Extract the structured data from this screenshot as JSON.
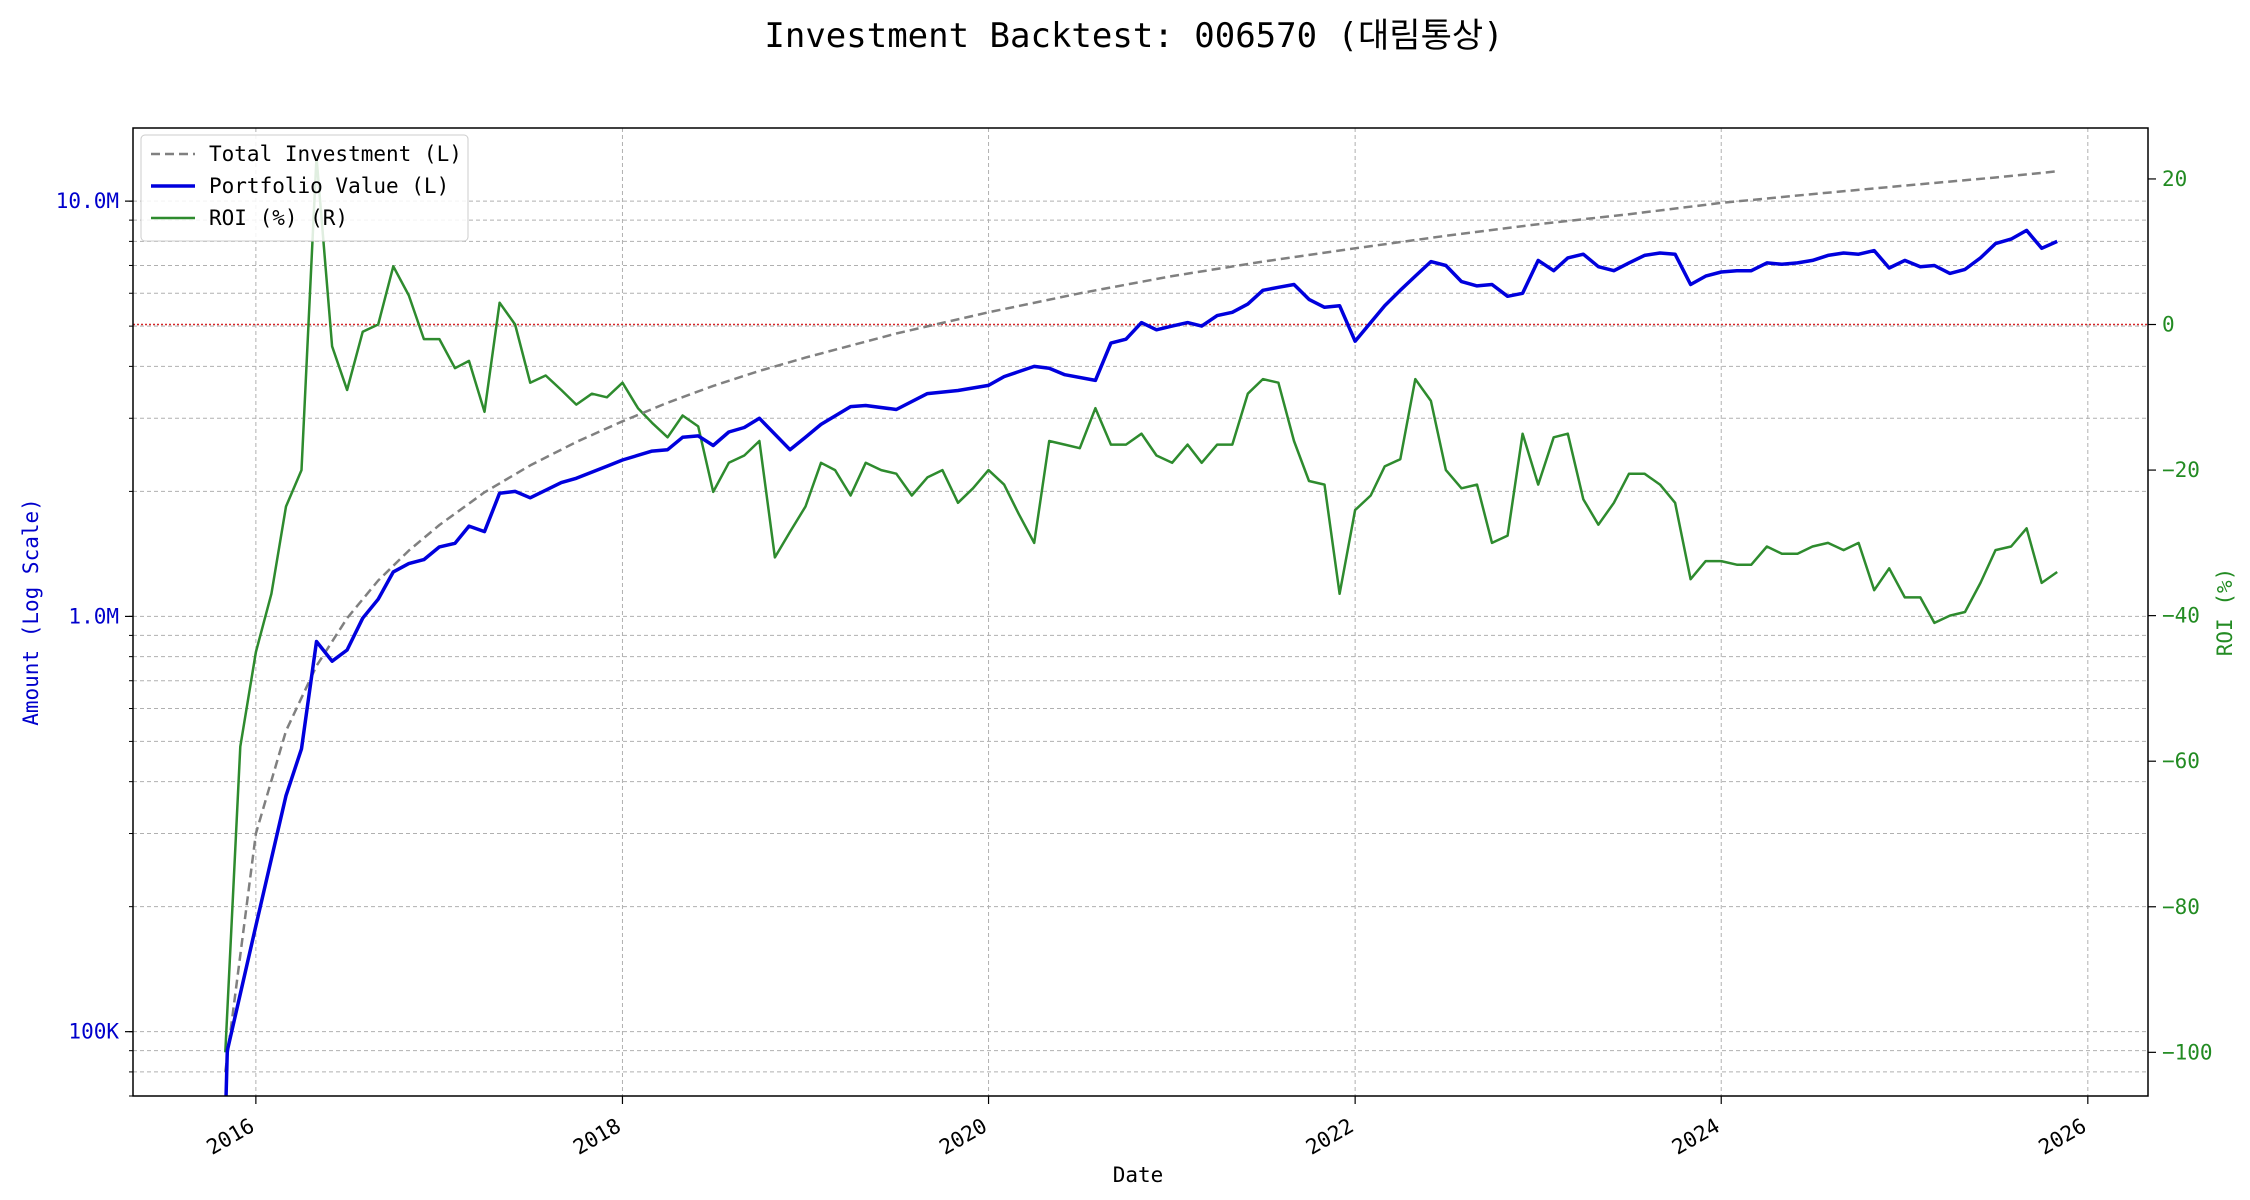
{
  "chart_data": {
    "type": "line",
    "title": "Investment Backtest: 006570 (대림통상)",
    "xlabel": "Date",
    "ylabel_left": "Amount (Log Scale)",
    "ylabel_right": "ROI (%)",
    "left_axis_scale": "log",
    "left_ylim": [
      70000,
      15000000
    ],
    "right_ylim": [
      -106,
      27
    ],
    "xlim": [
      "2015-05-01",
      "2026-05-01"
    ],
    "grid": true,
    "legend_position": "top-left",
    "zero_line": {
      "axis": "right",
      "value": 0,
      "color": "#d62728",
      "style": "dotted"
    },
    "x_ticks": [
      "2016",
      "2018",
      "2020",
      "2022",
      "2024",
      "2026"
    ],
    "left_ticks": [
      {
        "value": 100000,
        "label": "100K"
      },
      {
        "value": 1000000,
        "label": "1.0M"
      },
      {
        "value": 10000000,
        "label": "10.0M"
      }
    ],
    "right_ticks": [
      {
        "value": 20,
        "label": "20"
      },
      {
        "value": 0,
        "label": "0"
      },
      {
        "value": -20,
        "label": "−20"
      },
      {
        "value": -40,
        "label": "−40"
      },
      {
        "value": -60,
        "label": "−60"
      },
      {
        "value": -80,
        "label": "−80"
      },
      {
        "value": -100,
        "label": "−100"
      }
    ],
    "colors": {
      "total_investment": "#808080",
      "portfolio_value": "#0000dd",
      "roi": "#2e8b2e",
      "left_axis": "#0000cc",
      "right_axis": "#228b22",
      "grid": "#b0b0b0"
    },
    "series": [
      {
        "name": "Total Investment (L)",
        "axis": "left",
        "style": "dashed",
        "x": [
          "2015-11-01",
          "2016-01-01",
          "2016-03-01",
          "2016-05-01",
          "2016-07-01",
          "2016-09-01",
          "2016-11-01",
          "2017-01-01",
          "2017-04-01",
          "2017-07-01",
          "2017-10-01",
          "2018-01-01",
          "2018-04-01",
          "2018-07-01",
          "2018-10-01",
          "2019-01-01",
          "2019-07-01",
          "2020-01-01",
          "2020-07-01",
          "2021-01-01",
          "2021-07-01",
          "2022-01-01",
          "2022-07-01",
          "2023-01-01",
          "2023-07-01",
          "2024-01-01",
          "2024-07-01",
          "2025-01-01",
          "2025-07-01",
          "2025-11-01"
        ],
        "values": [
          80000,
          300000,
          530000,
          760000,
          990000,
          1220000,
          1440000,
          1660000,
          1990000,
          2310000,
          2630000,
          2950000,
          3270000,
          3590000,
          3900000,
          4200000,
          4800000,
          5400000,
          6000000,
          6600000,
          7150000,
          7700000,
          8250000,
          8800000,
          9300000,
          9900000,
          10400000,
          10900000,
          11400000,
          11800000
        ]
      },
      {
        "name": "Portfolio Value (L)",
        "axis": "left",
        "style": "solid",
        "x": [
          "2015-11-01",
          "2015-11-05",
          "2016-01-01",
          "2016-03-01",
          "2016-04-01",
          "2016-05-01",
          "2016-06-01",
          "2016-07-01",
          "2016-08-01",
          "2016-09-01",
          "2016-10-01",
          "2016-11-01",
          "2016-12-01",
          "2017-01-01",
          "2017-02-01",
          "2017-03-01",
          "2017-04-01",
          "2017-05-01",
          "2017-06-01",
          "2017-07-01",
          "2017-09-01",
          "2017-10-01",
          "2017-12-01",
          "2018-01-01",
          "2018-03-01",
          "2018-04-01",
          "2018-05-01",
          "2018-06-01",
          "2018-07-01",
          "2018-08-01",
          "2018-09-01",
          "2018-10-01",
          "2018-12-01",
          "2019-01-01",
          "2019-02-01",
          "2019-04-01",
          "2019-05-01",
          "2019-07-01",
          "2019-09-01",
          "2019-11-01",
          "2020-01-01",
          "2020-02-01",
          "2020-04-01",
          "2020-05-01",
          "2020-06-01",
          "2020-08-01",
          "2020-09-01",
          "2020-10-01",
          "2020-11-01",
          "2020-12-01",
          "2021-01-01",
          "2021-02-01",
          "2021-03-01",
          "2021-04-01",
          "2021-05-01",
          "2021-06-01",
          "2021-07-01",
          "2021-08-01",
          "2021-09-01",
          "2021-10-01",
          "2021-11-01",
          "2021-12-01",
          "2022-01-01",
          "2022-03-01",
          "2022-04-01",
          "2022-05-01",
          "2022-06-01",
          "2022-07-01",
          "2022-08-01",
          "2022-09-01",
          "2022-10-01",
          "2022-11-01",
          "2022-12-01",
          "2023-01-01",
          "2023-02-01",
          "2023-03-01",
          "2023-04-01",
          "2023-05-01",
          "2023-06-01",
          "2023-07-01",
          "2023-08-01",
          "2023-09-01",
          "2023-10-01",
          "2023-11-01",
          "2023-12-01",
          "2024-01-01",
          "2024-02-01",
          "2024-03-01",
          "2024-04-01",
          "2024-05-01",
          "2024-06-01",
          "2024-07-01",
          "2024-08-01",
          "2024-09-01",
          "2024-10-01",
          "2024-11-01",
          "2024-12-01",
          "2025-01-01",
          "2025-02-01",
          "2025-03-01",
          "2025-04-01",
          "2025-05-01",
          "2025-06-01",
          "2025-07-01",
          "2025-08-01",
          "2025-09-01",
          "2025-10-01",
          "2025-11-01"
        ],
        "values": [
          60000,
          90000,
          180000,
          370000,
          480000,
          870000,
          780000,
          830000,
          990000,
          1100000,
          1280000,
          1340000,
          1370000,
          1470000,
          1500000,
          1650000,
          1600000,
          1980000,
          2000000,
          1930000,
          2100000,
          2150000,
          2300000,
          2380000,
          2500000,
          2520000,
          2700000,
          2720000,
          2580000,
          2780000,
          2850000,
          3000000,
          2520000,
          2700000,
          2900000,
          3200000,
          3220000,
          3150000,
          3440000,
          3500000,
          3600000,
          3780000,
          4000000,
          3960000,
          3820000,
          3700000,
          4550000,
          4650000,
          5100000,
          4900000,
          5000000,
          5100000,
          5000000,
          5300000,
          5400000,
          5650000,
          6100000,
          6200000,
          6300000,
          5800000,
          5550000,
          5600000,
          4600000,
          5600000,
          6100000,
          6600000,
          7150000,
          7000000,
          6400000,
          6250000,
          6300000,
          5900000,
          6000000,
          7200000,
          6800000,
          7300000,
          7450000,
          6950000,
          6800000,
          7100000,
          7400000,
          7500000,
          7450000,
          6300000,
          6600000,
          6750000,
          6800000,
          6800000,
          7100000,
          7050000,
          7100000,
          7200000,
          7400000,
          7500000,
          7450000,
          7600000,
          6900000,
          7200000,
          6950000,
          7000000,
          6700000,
          6850000,
          7300000,
          7900000,
          8100000,
          8500000,
          7700000,
          8000000
        ]
      },
      {
        "name": "ROI (%) (R)",
        "axis": "right",
        "style": "solid",
        "x": [
          "2015-11-01",
          "2015-12-01",
          "2016-01-01",
          "2016-02-01",
          "2016-03-01",
          "2016-04-01",
          "2016-05-01",
          "2016-06-01",
          "2016-07-01",
          "2016-08-01",
          "2016-09-01",
          "2016-10-01",
          "2016-11-01",
          "2016-12-01",
          "2017-01-01",
          "2017-02-01",
          "2017-03-01",
          "2017-04-01",
          "2017-05-01",
          "2017-06-01",
          "2017-07-01",
          "2017-08-01",
          "2017-09-01",
          "2017-10-01",
          "2017-11-01",
          "2017-12-01",
          "2018-01-01",
          "2018-02-01",
          "2018-03-01",
          "2018-04-01",
          "2018-05-01",
          "2018-06-01",
          "2018-07-01",
          "2018-08-01",
          "2018-09-01",
          "2018-10-01",
          "2018-11-01",
          "2018-12-01",
          "2019-01-01",
          "2019-02-01",
          "2019-03-01",
          "2019-04-01",
          "2019-05-01",
          "2019-06-01",
          "2019-07-01",
          "2019-08-01",
          "2019-09-01",
          "2019-10-01",
          "2019-11-01",
          "2019-12-01",
          "2020-01-01",
          "2020-02-01",
          "2020-03-01",
          "2020-04-01",
          "2020-05-01",
          "2020-06-01",
          "2020-07-01",
          "2020-08-01",
          "2020-09-01",
          "2020-10-01",
          "2020-11-01",
          "2020-12-01",
          "2021-01-01",
          "2021-02-01",
          "2021-03-01",
          "2021-04-01",
          "2021-05-01",
          "2021-06-01",
          "2021-07-01",
          "2021-08-01",
          "2021-09-01",
          "2021-10-01",
          "2021-11-01",
          "2021-12-01",
          "2022-01-01",
          "2022-02-01",
          "2022-03-01",
          "2022-04-01",
          "2022-05-01",
          "2022-06-01",
          "2022-07-01",
          "2022-08-01",
          "2022-09-01",
          "2022-10-01",
          "2022-11-01",
          "2022-12-01",
          "2023-01-01",
          "2023-02-01",
          "2023-03-01",
          "2023-04-01",
          "2023-05-01",
          "2023-06-01",
          "2023-07-01",
          "2023-08-01",
          "2023-09-01",
          "2023-10-01",
          "2023-11-01",
          "2023-12-01",
          "2024-01-01",
          "2024-02-01",
          "2024-03-01",
          "2024-04-01",
          "2024-05-01",
          "2024-06-01",
          "2024-07-01",
          "2024-08-01",
          "2024-09-01",
          "2024-10-01",
          "2024-11-01",
          "2024-12-01",
          "2025-01-01",
          "2025-02-01",
          "2025-03-01",
          "2025-04-01",
          "2025-05-01",
          "2025-06-01",
          "2025-07-01",
          "2025-08-01",
          "2025-09-01",
          "2025-10-01",
          "2025-11-01"
        ],
        "values": [
          -100,
          -58,
          -45,
          -37,
          -25,
          -20,
          23,
          -3,
          -9,
          -1,
          0,
          8,
          4,
          -2,
          -2,
          -6,
          -5,
          -12,
          3,
          0,
          -8,
          -7,
          -9,
          -11,
          -9.5,
          -10,
          -8,
          -11.5,
          -13.5,
          -15.5,
          -12.5,
          -14,
          -23,
          -19,
          -18,
          -16,
          -32,
          -28.5,
          -25,
          -19,
          -20,
          -23.5,
          -19,
          -20,
          -20.5,
          -23.5,
          -21,
          -20,
          -24.5,
          -22.5,
          -20,
          -22,
          -26,
          -30,
          -16,
          -16.5,
          -17,
          -11.5,
          -16.5,
          -16.5,
          -15,
          -18,
          -19,
          -16.5,
          -19,
          -16.5,
          -16.5,
          -9.5,
          -7.5,
          -8,
          -16,
          -21.5,
          -22,
          -37,
          -25.5,
          -23.5,
          -19.5,
          -18.5,
          -7.5,
          -10.5,
          -20,
          -22.5,
          -22,
          -30,
          -29,
          -15,
          -22,
          -15.5,
          -15,
          -24,
          -27.5,
          -24.5,
          -20.5,
          -20.5,
          -22,
          -24.5,
          -35,
          -32.5,
          -32.5,
          -33,
          -33,
          -30.5,
          -31.5,
          -31.5,
          -30.5,
          -30,
          -31,
          -30,
          -36.5,
          -33.5,
          -37.5,
          -37.5,
          -41,
          -40,
          -39.5,
          -35.5,
          -31,
          -30.5,
          -28,
          -35.5,
          -34
        ]
      }
    ]
  }
}
